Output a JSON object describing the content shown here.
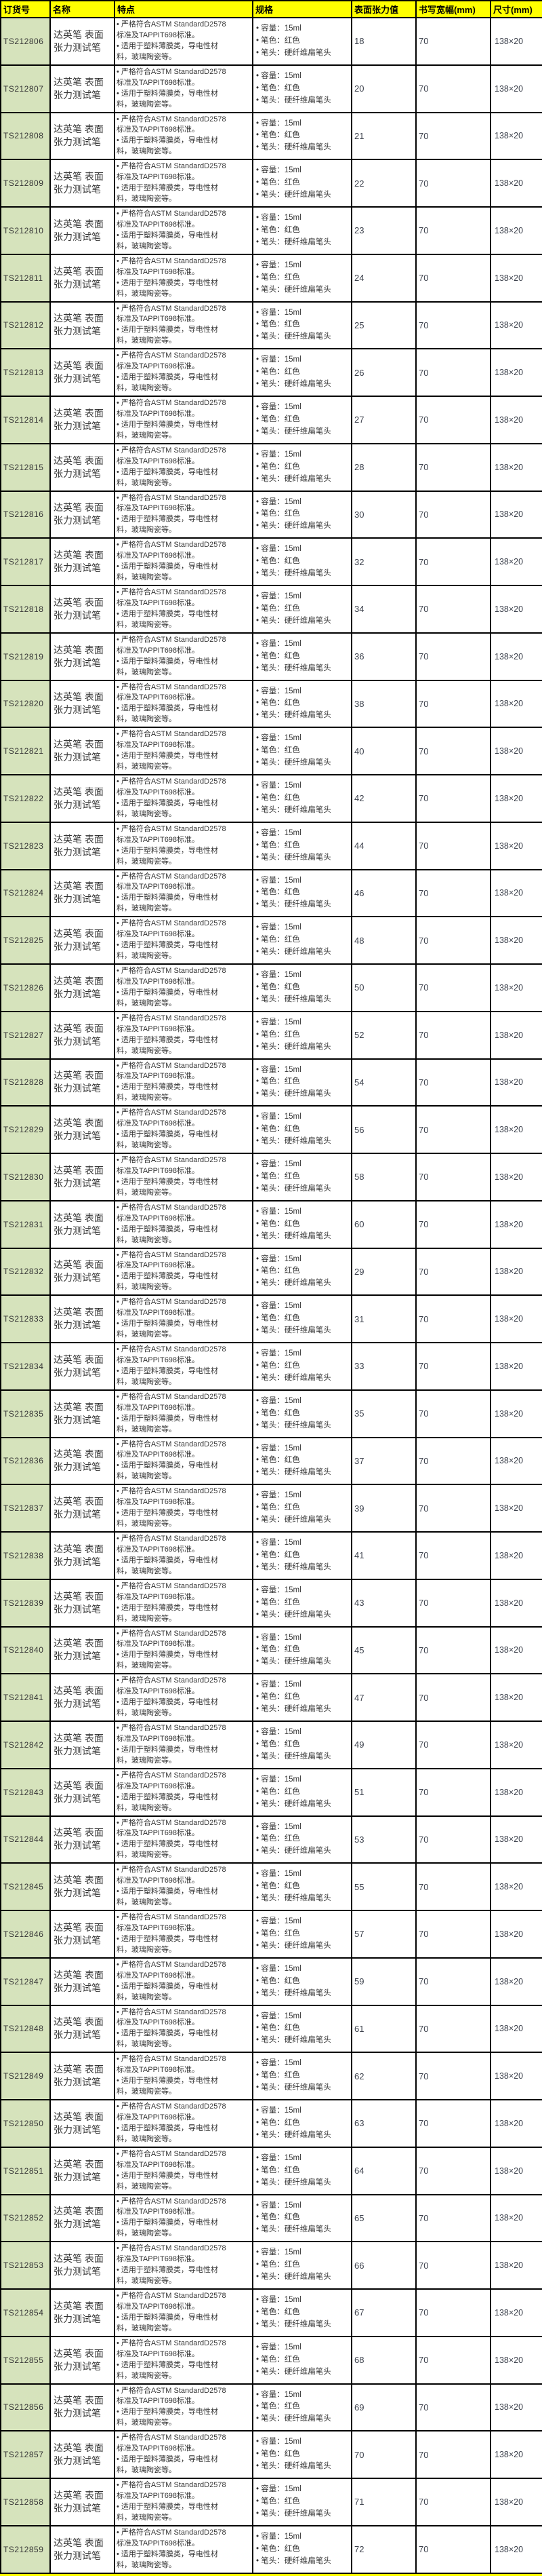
{
  "colors": {
    "header_bg": "#ffff00",
    "order_column_bg": "#d6e3bc",
    "border": "#000000"
  },
  "table": {
    "columns": [
      {
        "key": "order_no",
        "label": "订货号"
      },
      {
        "key": "name",
        "label": "名称"
      },
      {
        "key": "features",
        "label": "特点"
      },
      {
        "key": "specs",
        "label": "规格"
      },
      {
        "key": "tension",
        "label": "表面张力值"
      },
      {
        "key": "width",
        "label": "书写宽幅(mm)"
      },
      {
        "key": "size",
        "label": "尺寸(mm)"
      }
    ],
    "shared": {
      "name": "达英笔 表面张力测试笔",
      "feature_lines": [
        "• 严格符合ASTM StandardD2578",
        "标准及TAPPIT698标准。",
        "• 适用于塑料薄膜类，导电性材",
        "料，玻璃陶瓷等。"
      ],
      "spec_lines": [
        "• 容量：15ml",
        "• 笔色：红色",
        "• 笔头：硬纤维扁笔头"
      ],
      "width": "70",
      "size": "138×20"
    },
    "rows": [
      {
        "order_no": "TS212806",
        "tension": "18"
      },
      {
        "order_no": "TS212807",
        "tension": "20"
      },
      {
        "order_no": "TS212808",
        "tension": "21"
      },
      {
        "order_no": "TS212809",
        "tension": "22"
      },
      {
        "order_no": "TS212810",
        "tension": "23"
      },
      {
        "order_no": "TS212811",
        "tension": "24"
      },
      {
        "order_no": "TS212812",
        "tension": "25"
      },
      {
        "order_no": "TS212813",
        "tension": "26"
      },
      {
        "order_no": "TS212814",
        "tension": "27"
      },
      {
        "order_no": "TS212815",
        "tension": "28"
      },
      {
        "order_no": "TS212816",
        "tension": "30"
      },
      {
        "order_no": "TS212817",
        "tension": "32"
      },
      {
        "order_no": "TS212818",
        "tension": "34"
      },
      {
        "order_no": "TS212819",
        "tension": "36"
      },
      {
        "order_no": "TS212820",
        "tension": "38"
      },
      {
        "order_no": "TS212821",
        "tension": "40"
      },
      {
        "order_no": "TS212822",
        "tension": "42"
      },
      {
        "order_no": "TS212823",
        "tension": "44"
      },
      {
        "order_no": "TS212824",
        "tension": "46"
      },
      {
        "order_no": "TS212825",
        "tension": "48"
      },
      {
        "order_no": "TS212826",
        "tension": "50"
      },
      {
        "order_no": "TS212827",
        "tension": "52"
      },
      {
        "order_no": "TS212828",
        "tension": "54"
      },
      {
        "order_no": "TS212829",
        "tension": "56"
      },
      {
        "order_no": "TS212830",
        "tension": "58"
      },
      {
        "order_no": "TS212831",
        "tension": "60"
      },
      {
        "order_no": "TS212832",
        "tension": "29"
      },
      {
        "order_no": "TS212833",
        "tension": "31"
      },
      {
        "order_no": "TS212834",
        "tension": "33"
      },
      {
        "order_no": "TS212835",
        "tension": "35"
      },
      {
        "order_no": "TS212836",
        "tension": "37"
      },
      {
        "order_no": "TS212837",
        "tension": "39"
      },
      {
        "order_no": "TS212838",
        "tension": "41"
      },
      {
        "order_no": "TS212839",
        "tension": "43"
      },
      {
        "order_no": "TS212840",
        "tension": "45"
      },
      {
        "order_no": "TS212841",
        "tension": "47"
      },
      {
        "order_no": "TS212842",
        "tension": "49"
      },
      {
        "order_no": "TS212843",
        "tension": "51"
      },
      {
        "order_no": "TS212844",
        "tension": "53"
      },
      {
        "order_no": "TS212845",
        "tension": "55"
      },
      {
        "order_no": "TS212846",
        "tension": "57"
      },
      {
        "order_no": "TS212847",
        "tension": "59"
      },
      {
        "order_no": "TS212848",
        "tension": "61"
      },
      {
        "order_no": "TS212849",
        "tension": "62"
      },
      {
        "order_no": "TS212850",
        "tension": "63"
      },
      {
        "order_no": "TS212851",
        "tension": "64"
      },
      {
        "order_no": "TS212852",
        "tension": "65"
      },
      {
        "order_no": "TS212853",
        "tension": "66"
      },
      {
        "order_no": "TS212854",
        "tension": "67"
      },
      {
        "order_no": "TS212855",
        "tension": "68"
      },
      {
        "order_no": "TS212856",
        "tension": "69"
      },
      {
        "order_no": "TS212857",
        "tension": "70"
      },
      {
        "order_no": "TS212858",
        "tension": "71"
      },
      {
        "order_no": "TS212859",
        "tension": "72"
      }
    ]
  }
}
